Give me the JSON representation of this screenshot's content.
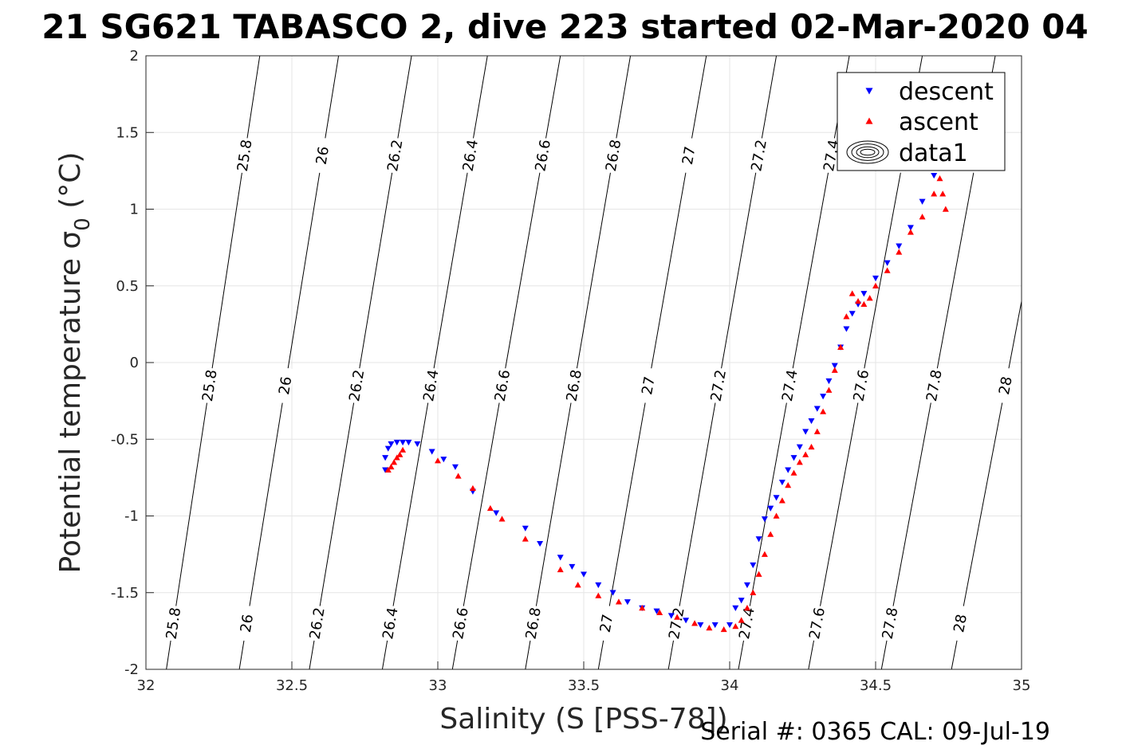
{
  "title": "21 SG621 TABASCO 2, dive 223 started 02-Mar-2020 04",
  "footer": "Serial #: 0365  CAL: 09-Jul-19",
  "colors": {
    "descent": "#0000ff",
    "ascent": "#ff0000",
    "contour": "#000000",
    "grid": "#e6e6e6"
  },
  "chart_data": {
    "type": "scatter",
    "xlabel": "Salinity (S [PSS-78])",
    "ylabel": "Potential temperature σ0 (°C)",
    "xlim": [
      32,
      35
    ],
    "ylim": [
      -2,
      2
    ],
    "xticks": [
      "32",
      "32.5",
      "33",
      "33.5",
      "34",
      "34.5",
      "35"
    ],
    "yticks": [
      "-2",
      "-1.5",
      "-1",
      "-0.5",
      "0",
      "0.5",
      "1",
      "1.5",
      "2"
    ],
    "grid": true,
    "legend": {
      "placement": "top-right",
      "entries": [
        "descent",
        "ascent",
        "data1"
      ]
    },
    "contours": {
      "levels": [
        "25.8",
        "26",
        "26.2",
        "26.4",
        "26.6",
        "26.8",
        "27",
        "27.2",
        "27.4",
        "27.6",
        "27.8",
        "28"
      ],
      "lines": [
        {
          "level": "25.8",
          "x_bottom": 32.07,
          "x_top": 32.39
        },
        {
          "level": "26",
          "x_bottom": 32.32,
          "x_top": 32.66
        },
        {
          "level": "26.2",
          "x_bottom": 32.56,
          "x_top": 32.91
        },
        {
          "level": "26.4",
          "x_bottom": 32.81,
          "x_top": 33.17
        },
        {
          "level": "26.6",
          "x_bottom": 33.05,
          "x_top": 33.42
        },
        {
          "level": "26.8",
          "x_bottom": 33.3,
          "x_top": 33.66
        },
        {
          "level": "27",
          "x_bottom": 33.55,
          "x_top": 33.92
        },
        {
          "level": "27.2",
          "x_bottom": 33.79,
          "x_top": 34.16
        },
        {
          "level": "27.4",
          "x_bottom": 34.03,
          "x_top": 34.41
        },
        {
          "level": "27.6",
          "x_bottom": 34.27,
          "x_top": 34.66
        },
        {
          "level": "27.8",
          "x_bottom": 34.52,
          "x_top": 34.91
        },
        {
          "level": "28",
          "x_bottom": 34.76,
          "x_top": 35.16
        }
      ],
      "label_rows": [
        1.35,
        -0.15,
        -1.7
      ]
    },
    "series": [
      {
        "name": "descent",
        "marker": "triangle-down",
        "x": [
          32.82,
          32.82,
          32.83,
          32.84,
          32.86,
          32.88,
          32.9,
          32.93,
          32.98,
          33.02,
          33.06,
          33.12,
          33.2,
          33.3,
          33.35,
          33.42,
          33.46,
          33.5,
          33.55,
          33.6,
          33.65,
          33.7,
          33.75,
          33.8,
          33.85,
          33.9,
          33.95,
          34.0,
          34.02,
          34.04,
          34.06,
          34.08,
          34.1,
          34.12,
          34.14,
          34.16,
          34.18,
          34.2,
          34.22,
          34.24,
          34.26,
          34.28,
          34.3,
          34.32,
          34.34,
          34.36,
          34.38,
          34.4,
          34.42,
          34.44,
          34.46,
          34.5,
          34.54,
          34.58,
          34.62,
          34.66,
          34.7
        ],
        "y": [
          -0.7,
          -0.62,
          -0.56,
          -0.53,
          -0.52,
          -0.52,
          -0.52,
          -0.53,
          -0.58,
          -0.63,
          -0.68,
          -0.84,
          -0.98,
          -1.08,
          -1.18,
          -1.27,
          -1.33,
          -1.38,
          -1.45,
          -1.5,
          -1.56,
          -1.6,
          -1.62,
          -1.65,
          -1.68,
          -1.71,
          -1.71,
          -1.71,
          -1.6,
          -1.55,
          -1.45,
          -1.32,
          -1.15,
          -1.02,
          -0.95,
          -0.88,
          -0.78,
          -0.7,
          -0.62,
          -0.55,
          -0.45,
          -0.38,
          -0.3,
          -0.22,
          -0.12,
          -0.02,
          0.1,
          0.22,
          0.32,
          0.38,
          0.45,
          0.55,
          0.65,
          0.76,
          0.88,
          1.05,
          1.22
        ]
      },
      {
        "name": "ascent",
        "marker": "triangle-up",
        "x": [
          32.83,
          32.84,
          32.85,
          32.86,
          32.87,
          32.88,
          33.0,
          33.07,
          33.12,
          33.18,
          33.22,
          33.3,
          33.42,
          33.48,
          33.55,
          33.62,
          33.7,
          33.76,
          33.82,
          33.88,
          33.93,
          33.98,
          34.02,
          34.04,
          34.06,
          34.08,
          34.1,
          34.12,
          34.14,
          34.16,
          34.18,
          34.2,
          34.22,
          34.24,
          34.26,
          34.28,
          34.3,
          34.32,
          34.34,
          34.36,
          34.38,
          34.4,
          34.42,
          34.44,
          34.46,
          34.48,
          34.5,
          34.54,
          34.58,
          34.62,
          34.66,
          34.7,
          34.72,
          34.73,
          34.74
        ],
        "y": [
          -0.7,
          -0.68,
          -0.65,
          -0.62,
          -0.6,
          -0.57,
          -0.64,
          -0.74,
          -0.82,
          -0.95,
          -1.02,
          -1.15,
          -1.35,
          -1.45,
          -1.52,
          -1.56,
          -1.6,
          -1.63,
          -1.66,
          -1.7,
          -1.73,
          -1.74,
          -1.72,
          -1.68,
          -1.6,
          -1.5,
          -1.38,
          -1.25,
          -1.12,
          -1.0,
          -0.9,
          -0.8,
          -0.72,
          -0.65,
          -0.6,
          -0.55,
          -0.45,
          -0.32,
          -0.18,
          -0.05,
          0.1,
          0.3,
          0.45,
          0.4,
          0.38,
          0.42,
          0.5,
          0.6,
          0.72,
          0.85,
          0.95,
          1.1,
          1.2,
          1.1,
          1.0
        ]
      }
    ]
  }
}
